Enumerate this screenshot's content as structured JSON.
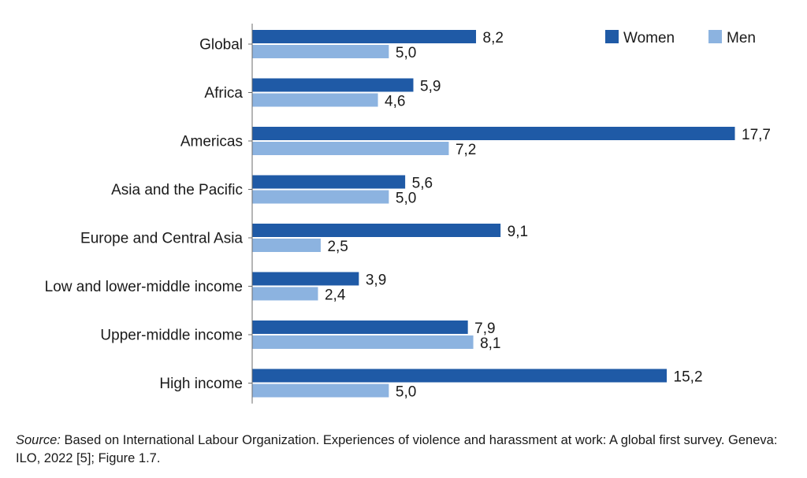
{
  "chart_data": {
    "type": "bar",
    "orientation": "horizontal",
    "title": "",
    "xlabel": "",
    "ylabel": "",
    "xlim": [
      0,
      17.7
    ],
    "categories": [
      "Global",
      "Africa",
      "Americas",
      "Asia and the Pacific",
      "Europe and Central Asia",
      "Low and lower-middle income",
      "Upper-middle income",
      "High income"
    ],
    "series": [
      {
        "name": "Women",
        "color": "#1f5aa6",
        "values": [
          8.2,
          5.9,
          17.7,
          5.6,
          9.1,
          3.9,
          7.9,
          15.2
        ],
        "labels": [
          "8,2",
          "5,9",
          "17,7",
          "5,6",
          "9,1",
          "3,9",
          "7,9",
          "15,2"
        ]
      },
      {
        "name": "Men",
        "color": "#8cb3e0",
        "values": [
          5.0,
          4.6,
          7.2,
          5.0,
          2.5,
          2.4,
          8.1,
          5.0
        ],
        "labels": [
          "5,0",
          "4,6",
          "7,2",
          "5,0",
          "2,5",
          "2,4",
          "8,1",
          "5,0"
        ]
      }
    ],
    "legend": "top-right",
    "grid": false
  },
  "source": {
    "prefix": "Source:",
    "text": " Based on International Labour Organization. Experiences of violence and harassment at work: A global first survey. Geneva: ILO, 2022 [5]; Figure 1.7."
  }
}
